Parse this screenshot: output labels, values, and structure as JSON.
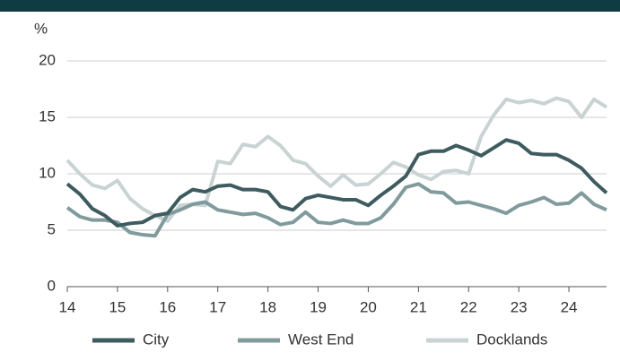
{
  "chart_data": {
    "type": "line",
    "y_axis_label": "%",
    "x": [
      14,
      14.25,
      14.5,
      14.75,
      15,
      15.25,
      15.5,
      15.75,
      16,
      16.25,
      16.5,
      16.75,
      17,
      17.25,
      17.5,
      17.75,
      18,
      18.25,
      18.5,
      18.75,
      19,
      19.25,
      19.5,
      19.75,
      20,
      20.25,
      20.5,
      20.75,
      21,
      21.25,
      21.5,
      21.75,
      22,
      22.25,
      22.5,
      22.75,
      23,
      23.25,
      23.5,
      23.75,
      24,
      24.25,
      24.5,
      24.75
    ],
    "series": [
      {
        "name": "City",
        "color": "#3e5b5f",
        "values": [
          9.1,
          8.2,
          6.9,
          6.3,
          5.4,
          5.6,
          5.7,
          6.3,
          6.5,
          7.9,
          8.6,
          8.4,
          8.9,
          9.0,
          8.6,
          8.6,
          8.4,
          7.1,
          6.8,
          7.8,
          8.1,
          7.9,
          7.7,
          7.7,
          7.2,
          8.1,
          8.9,
          9.8,
          11.7,
          12.0,
          12.0,
          12.5,
          12.1,
          11.6,
          12.3,
          13.0,
          12.7,
          11.8,
          11.7,
          11.7,
          11.2,
          10.5,
          9.3,
          8.3
        ]
      },
      {
        "name": "West End",
        "color": "#819b9d",
        "values": [
          7.0,
          6.2,
          5.9,
          5.9,
          5.7,
          4.8,
          4.6,
          4.5,
          6.4,
          6.8,
          7.3,
          7.5,
          6.8,
          6.6,
          6.4,
          6.5,
          6.1,
          5.5,
          5.7,
          6.6,
          5.7,
          5.6,
          5.9,
          5.6,
          5.6,
          6.1,
          7.3,
          8.8,
          9.1,
          8.4,
          8.3,
          7.4,
          7.5,
          7.2,
          6.9,
          6.5,
          7.2,
          7.5,
          7.9,
          7.3,
          7.4,
          8.3,
          7.3,
          6.8
        ]
      },
      {
        "name": "Docklands",
        "color": "#c9d3d3",
        "values": [
          11.2,
          10.0,
          9.0,
          8.7,
          9.4,
          7.8,
          6.9,
          6.3,
          5.8,
          7.2,
          7.3,
          7.2,
          11.1,
          10.9,
          12.6,
          12.4,
          13.3,
          12.5,
          11.2,
          10.9,
          9.8,
          8.9,
          9.9,
          9.0,
          9.1,
          10.0,
          11.0,
          10.6,
          9.9,
          9.5,
          10.2,
          10.3,
          10.0,
          13.3,
          15.2,
          16.6,
          16.3,
          16.5,
          16.2,
          16.7,
          16.4,
          15.0,
          16.6,
          15.9
        ]
      }
    ],
    "xlim": [
      14,
      24.75
    ],
    "xticks": [
      14,
      15,
      16,
      17,
      18,
      19,
      20,
      21,
      22,
      23,
      24
    ],
    "ylim": [
      0,
      20
    ],
    "yticks": [
      0,
      5,
      10,
      15,
      20
    ],
    "grid": true,
    "legend": "bottom"
  }
}
